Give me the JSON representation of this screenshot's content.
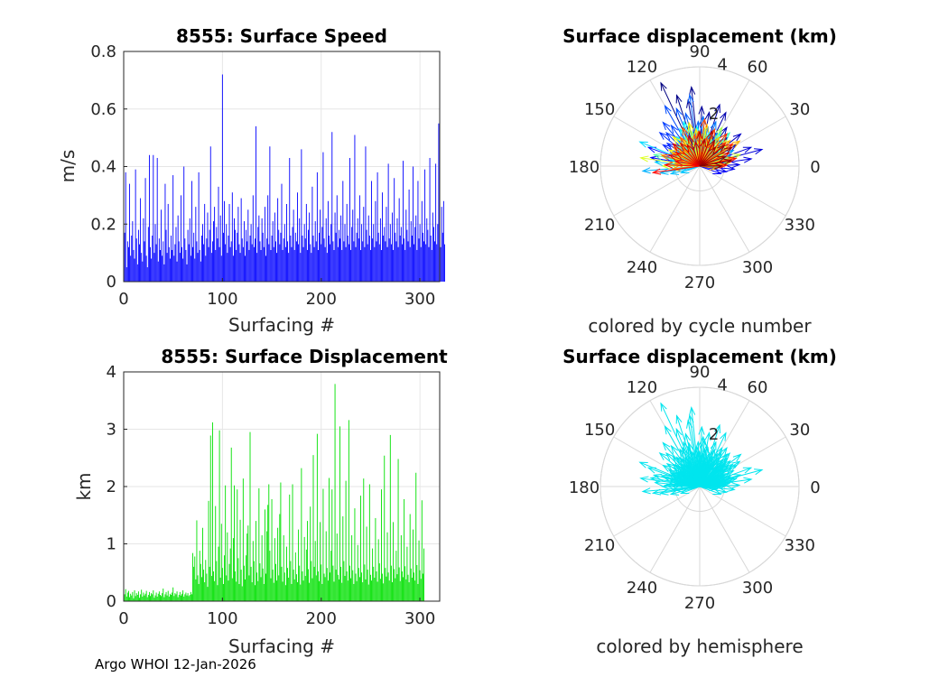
{
  "footer": "Argo WHOI 12-Jan-2026",
  "chart_data": [
    {
      "type": "bar",
      "title": "8555: Surface Speed",
      "xlabel": "Surfacing #",
      "ylabel": "m/s",
      "xlim": [
        0,
        320
      ],
      "ylim": [
        0,
        0.8
      ],
      "xticks": [
        0,
        100,
        200,
        300
      ],
      "yticks": [
        0,
        0.2,
        0.4,
        0.6,
        0.8
      ],
      "xtick_labels": [
        "0",
        "100",
        "200",
        "300"
      ],
      "ytick_labels": [
        "0",
        "0.2",
        "0.4",
        "0.6",
        "0.8"
      ],
      "grid": true,
      "color": "#0000ff",
      "values": [
        0.17,
        0.38,
        0.05,
        0.14,
        0.12,
        0.34,
        0.09,
        0.16,
        0.21,
        0.11,
        0.08,
        0.39,
        0.15,
        0.06,
        0.18,
        0.13,
        0.29,
        0.1,
        0.07,
        0.22,
        0.14,
        0.36,
        0.09,
        0.05,
        0.19,
        0.44,
        0.12,
        0.08,
        0.16,
        0.44,
        0.1,
        0.2,
        0.13,
        0.43,
        0.07,
        0.15,
        0.11,
        0.25,
        0.09,
        0.14,
        0.06,
        0.34,
        0.18,
        0.1,
        0.27,
        0.12,
        0.08,
        0.16,
        0.11,
        0.37,
        0.09,
        0.13,
        0.19,
        0.07,
        0.23,
        0.14,
        0.1,
        0.3,
        0.12,
        0.08,
        0.4,
        0.15,
        0.11,
        0.06,
        0.18,
        0.13,
        0.22,
        0.09,
        0.35,
        0.12,
        0.17,
        0.08,
        0.26,
        0.14,
        0.1,
        0.38,
        0.11,
        0.07,
        0.16,
        0.2,
        0.13,
        0.27,
        0.09,
        0.15,
        0.24,
        0.12,
        0.18,
        0.47,
        0.1,
        0.14,
        0.21,
        0.26,
        0.11,
        0.19,
        0.15,
        0.33,
        0.12,
        0.23,
        0.09,
        0.72,
        0.17,
        0.28,
        0.13,
        0.2,
        0.1,
        0.16,
        0.27,
        0.12,
        0.14,
        0.31,
        0.09,
        0.22,
        0.18,
        0.11,
        0.17,
        0.26,
        0.13,
        0.1,
        0.29,
        0.15,
        0.12,
        0.21,
        0.09,
        0.18,
        0.14,
        0.25,
        0.11,
        0.16,
        0.2,
        0.13,
        0.3,
        0.12,
        0.15,
        0.54,
        0.1,
        0.19,
        0.23,
        0.14,
        0.11,
        0.22,
        0.17,
        0.12,
        0.26,
        0.09,
        0.15,
        0.3,
        0.13,
        0.47,
        0.11,
        0.16,
        0.21,
        0.12,
        0.24,
        0.14,
        0.1,
        0.29,
        0.18,
        0.13,
        0.17,
        0.34,
        0.11,
        0.15,
        0.2,
        0.12,
        0.27,
        0.14,
        0.1,
        0.43,
        0.16,
        0.12,
        0.19,
        0.25,
        0.11,
        0.17,
        0.14,
        0.31,
        0.13,
        0.22,
        0.1,
        0.46,
        0.16,
        0.12,
        0.2,
        0.15,
        0.27,
        0.11,
        0.18,
        0.24,
        0.13,
        0.1,
        0.33,
        0.16,
        0.12,
        0.21,
        0.14,
        0.38,
        0.11,
        0.17,
        0.25,
        0.13,
        0.19,
        0.45,
        0.15,
        0.12,
        0.22,
        0.1,
        0.28,
        0.16,
        0.13,
        0.2,
        0.52,
        0.14,
        0.11,
        0.24,
        0.17,
        0.3,
        0.12,
        0.18,
        0.15,
        0.23,
        0.11,
        0.35,
        0.14,
        0.2,
        0.12,
        0.27,
        0.16,
        0.13,
        0.43,
        0.11,
        0.19,
        0.25,
        0.14,
        0.51,
        0.12,
        0.17,
        0.22,
        0.15,
        0.3,
        0.11,
        0.2,
        0.14,
        0.26,
        0.12,
        0.47,
        0.18,
        0.13,
        0.23,
        0.16,
        0.11,
        0.35,
        0.15,
        0.2,
        0.12,
        0.28,
        0.14,
        0.38,
        0.17,
        0.13,
        0.22,
        0.11,
        0.31,
        0.16,
        0.19,
        0.14,
        0.26,
        0.12,
        0.41,
        0.15,
        0.2,
        0.13,
        0.24,
        0.11,
        0.36,
        0.17,
        0.14,
        0.22,
        0.12,
        0.29,
        0.16,
        0.19,
        0.13,
        0.42,
        0.15,
        0.11,
        0.25,
        0.18,
        0.14,
        0.32,
        0.12,
        0.21,
        0.16,
        0.4,
        0.13,
        0.19,
        0.23,
        0.11,
        0.35,
        0.15,
        0.2,
        0.12,
        0.28,
        0.17,
        0.14,
        0.39,
        0.13,
        0.22,
        0.18,
        0.12,
        0.43,
        0.16,
        0.11,
        0.24,
        0.19,
        0.14,
        0.41,
        0.13,
        0.2,
        0.55,
        0.15,
        0.12,
        0.26,
        0.17,
        0.28,
        0.13
      ]
    },
    {
      "type": "polar",
      "title": "Surface displacement (km)",
      "xlabel": "colored by cycle number",
      "rticks": [
        2,
        4
      ],
      "rtick_labels": [
        "2",
        "4"
      ],
      "rmax": 4,
      "angle_ticks": [
        0,
        30,
        60,
        90,
        120,
        150,
        180,
        210,
        240,
        270,
        300,
        330
      ],
      "angle_labels": [
        "0",
        "30",
        "60",
        "90",
        "120",
        "150",
        "180",
        "210",
        "240",
        "270",
        "300",
        "330"
      ],
      "colormap": "jet",
      "vectors": [
        [
          115,
          3.7
        ],
        [
          108,
          3.0
        ],
        [
          96,
          3.2
        ],
        [
          100,
          2.7
        ],
        [
          88,
          2.4
        ],
        [
          80,
          2.2
        ],
        [
          72,
          2.6
        ],
        [
          64,
          2.4
        ],
        [
          55,
          1.9
        ],
        [
          46,
          1.6
        ],
        [
          38,
          2.1
        ],
        [
          30,
          1.7
        ],
        [
          20,
          2.2
        ],
        [
          15,
          2.6
        ],
        [
          8,
          2.1
        ],
        [
          2,
          1.6
        ],
        [
          -5,
          1.4
        ],
        [
          -12,
          1.1
        ],
        [
          -20,
          0.9
        ],
        [
          170,
          2.0
        ],
        [
          165,
          1.5
        ],
        [
          160,
          2.2
        ],
        [
          155,
          1.3
        ],
        [
          150,
          1.7
        ],
        [
          145,
          1.6
        ],
        [
          140,
          2.1
        ],
        [
          135,
          1.9
        ],
        [
          130,
          2.3
        ],
        [
          125,
          2.0
        ],
        [
          120,
          2.8
        ],
        [
          112,
          2.5
        ],
        [
          105,
          2.2
        ],
        [
          98,
          2.9
        ],
        [
          92,
          1.8
        ],
        [
          86,
          2.0
        ],
        [
          78,
          1.6
        ],
        [
          70,
          1.9
        ],
        [
          62,
          1.5
        ],
        [
          50,
          1.4
        ],
        [
          42,
          1.3
        ],
        [
          34,
          1.2
        ],
        [
          25,
          1.5
        ],
        [
          18,
          1.3
        ],
        [
          10,
          1.1
        ],
        [
          185,
          2.3
        ],
        [
          190,
          1.6
        ],
        [
          195,
          1.2
        ],
        [
          200,
          0.8
        ],
        [
          175,
          1.8
        ],
        [
          168,
          1.2
        ],
        [
          158,
          2.6
        ],
        [
          148,
          1.1
        ],
        [
          138,
          1.3
        ],
        [
          128,
          1.5
        ],
        [
          118,
          1.7
        ],
        [
          110,
          1.9
        ],
        [
          102,
          1.4
        ],
        [
          94,
          1.6
        ],
        [
          84,
          1.3
        ],
        [
          74,
          1.4
        ],
        [
          66,
          1.2
        ],
        [
          58,
          1.6
        ],
        [
          48,
          1.8
        ],
        [
          40,
          1.1
        ],
        [
          28,
          1.0
        ],
        [
          12,
          0.9
        ],
        [
          -2,
          0.8
        ],
        [
          176,
          1.3
        ],
        [
          166,
          1.9
        ],
        [
          156,
          1.0
        ],
        [
          146,
          0.9
        ],
        [
          136,
          1.2
        ],
        [
          126,
          1.1
        ],
        [
          116,
          1.3
        ],
        [
          106,
          1.6
        ],
        [
          90,
          1.1
        ],
        [
          82,
          1.5
        ],
        [
          76,
          1.0
        ],
        [
          68,
          1.3
        ],
        [
          60,
          1.8
        ],
        [
          52,
          1.2
        ],
        [
          44,
          1.5
        ],
        [
          36,
          1.4
        ],
        [
          26,
          1.1
        ],
        [
          16,
          1.7
        ],
        [
          6,
          1.2
        ],
        [
          180,
          1.5
        ],
        [
          172,
          2.4
        ],
        [
          162,
          1.1
        ],
        [
          152,
          1.4
        ],
        [
          142,
          1.0
        ],
        [
          132,
          1.6
        ],
        [
          122,
          1.3
        ],
        [
          114,
          1.1
        ],
        [
          104,
          1.8
        ],
        [
          96,
          1.5
        ],
        [
          88,
          1.2
        ],
        [
          80,
          1.7
        ],
        [
          72,
          1.1
        ],
        [
          64,
          1.0
        ],
        [
          56,
          1.4
        ],
        [
          48,
          1.1
        ],
        [
          40,
          1.6
        ],
        [
          32,
          1.9
        ],
        [
          22,
          1.0
        ],
        [
          14,
          1.4
        ],
        [
          4,
          1.0
        ],
        [
          -8,
          0.7
        ],
        [
          186,
          1.1
        ],
        [
          174,
          1.0
        ],
        [
          164,
          1.6
        ],
        [
          154,
          1.2
        ],
        [
          144,
          1.3
        ],
        [
          134,
          1.0
        ],
        [
          124,
          1.4
        ],
        [
          114,
          1.7
        ],
        [
          100,
          1.3
        ],
        [
          92,
          1.4
        ],
        [
          84,
          1.9
        ],
        [
          76,
          1.2
        ],
        [
          68,
          1.6
        ],
        [
          58,
          1.1
        ],
        [
          50,
          1.7
        ],
        [
          42,
          1.4
        ],
        [
          34,
          1.6
        ],
        [
          24,
          1.3
        ],
        [
          12,
          1.5
        ],
        [
          2,
          1.1
        ],
        [
          188,
          1.9
        ],
        [
          178,
          1.4
        ],
        [
          168,
          1.0
        ],
        [
          160,
          1.3
        ],
        [
          150,
          1.1
        ],
        [
          140,
          1.4
        ],
        [
          130,
          1.2
        ],
        [
          120,
          1.0
        ],
        [
          110,
          1.3
        ],
        [
          100,
          1.0
        ],
        [
          90,
          1.4
        ],
        [
          80,
          1.1
        ],
        [
          70,
          1.5
        ],
        [
          60,
          1.2
        ],
        [
          50,
          1.0
        ],
        [
          40,
          1.3
        ],
        [
          30,
          1.5
        ],
        [
          20,
          1.1
        ],
        [
          10,
          1.3
        ],
        [
          0,
          0.9
        ]
      ]
    },
    {
      "type": "bar",
      "title": "8555: Surface Displacement",
      "xlabel": "Surfacing #",
      "ylabel": "km",
      "xlim": [
        0,
        320
      ],
      "ylim": [
        0,
        4
      ],
      "xticks": [
        0,
        100,
        200,
        300
      ],
      "yticks": [
        0,
        1,
        2,
        3,
        4
      ],
      "xtick_labels": [
        "0",
        "100",
        "200",
        "300"
      ],
      "ytick_labels": [
        "0",
        "1",
        "2",
        "3",
        "4"
      ],
      "grid": true,
      "color": "#00e000",
      "values": [
        0.12,
        0.21,
        0.08,
        0.15,
        0.18,
        0.07,
        0.13,
        0.1,
        0.16,
        0.05,
        0.19,
        0.09,
        0.14,
        0.11,
        0.17,
        0.06,
        0.12,
        0.2,
        0.08,
        0.15,
        0.1,
        0.13,
        0.18,
        0.07,
        0.11,
        0.16,
        0.09,
        0.14,
        0.12,
        0.19,
        0.06,
        0.1,
        0.15,
        0.08,
        0.13,
        0.17,
        0.11,
        0.09,
        0.14,
        0.22,
        0.07,
        0.12,
        0.16,
        0.1,
        0.18,
        0.08,
        0.13,
        0.11,
        0.15,
        0.24,
        0.09,
        0.14,
        0.12,
        0.17,
        0.07,
        0.11,
        0.16,
        0.1,
        0.13,
        0.19,
        0.08,
        0.12,
        0.15,
        0.1,
        0.14,
        0.09,
        0.11,
        0.16,
        0.12,
        0.84,
        0.6,
        0.78,
        0.38,
        1.41,
        0.45,
        0.3,
        0.88,
        0.65,
        0.42,
        1.28,
        0.55,
        0.33,
        0.72,
        0.48,
        0.25,
        1.75,
        0.6,
        2.89,
        0.44,
        3.12,
        0.52,
        0.35,
        1.66,
        0.7,
        0.28,
        0.95,
        2.98,
        0.41,
        1.35,
        0.58,
        0.3,
        0.8,
        2.02,
        0.45,
        1.2,
        0.36,
        0.65,
        0.92,
        2.68,
        0.4,
        1.1,
        2.02,
        0.52,
        0.34,
        1.95,
        0.75,
        0.3,
        1.42,
        0.55,
        0.26,
        2.14,
        0.62,
        0.38,
        0.8,
        1.18,
        1.32,
        0.45,
        2.95,
        0.6,
        0.33,
        1.05,
        0.7,
        0.28,
        1.4,
        0.5,
        0.35,
        1.97,
        0.66,
        0.42,
        1.15,
        0.57,
        0.3,
        1.6,
        0.48,
        1.22,
        1.68,
        2.04,
        0.88,
        0.4,
        1.78,
        0.55,
        0.32,
        1.1,
        0.65,
        0.36,
        1.28,
        0.45,
        1.52,
        2.07,
        0.6,
        0.34,
        1.15,
        0.5,
        0.28,
        0.95,
        0.58,
        0.41,
        1.86,
        0.7,
        0.3,
        2.04,
        0.55,
        0.38,
        0.85,
        0.47,
        0.33,
        1.25,
        0.62,
        0.29,
        2.32,
        0.52,
        0.36,
        1.12,
        0.44,
        0.9,
        1.4,
        0.56,
        0.32,
        1.65,
        0.7,
        0.4,
        2.55,
        0.6,
        1.05,
        0.45,
        2.92,
        0.52,
        0.35,
        1.38,
        0.64,
        0.3,
        1.96,
        0.48,
        0.42,
        1.22,
        0.58,
        0.36,
        2.15,
        0.5,
        0.88,
        1.95,
        0.62,
        0.34,
        3.79,
        0.55,
        1.18,
        0.46,
        0.38,
        3.05,
        0.6,
        0.32,
        1.48,
        0.7,
        0.44,
        2.1,
        0.52,
        0.36,
        3.16,
        0.62,
        0.4,
        1.15,
        0.54,
        0.3,
        1.62,
        0.48,
        0.35,
        0.98,
        0.58,
        0.42,
        1.84,
        0.5,
        0.33,
        2.14,
        0.64,
        0.38,
        1.3,
        0.55,
        0.29,
        2.04,
        0.46,
        0.36,
        0.92,
        0.6,
        0.41,
        1.45,
        0.52,
        0.34,
        1.08,
        0.66,
        0.39,
        1.95,
        0.48,
        0.31,
        2.54,
        0.58,
        0.43,
        1.2,
        0.5,
        0.36,
        2.9,
        0.62,
        0.33,
        1.38,
        0.56,
        0.4,
        0.88,
        0.47,
        2.48,
        0.59,
        0.35,
        1.15,
        0.52,
        0.42,
        1.78,
        0.61,
        0.38,
        0.95,
        0.46,
        0.33,
        1.52,
        0.57,
        0.41,
        1.25,
        0.5,
        0.36,
        2.24,
        0.63,
        0.3,
        1.06,
        0.54,
        0.39,
        1.76,
        0.48,
        0.92
      ]
    },
    {
      "type": "polar",
      "title": "Surface displacement (km)",
      "xlabel": "colored by hemisphere",
      "rticks": [
        2,
        4
      ],
      "rtick_labels": [
        "2",
        "4"
      ],
      "rmax": 4,
      "angle_ticks": [
        0,
        30,
        60,
        90,
        120,
        150,
        180,
        210,
        240,
        270,
        300,
        330
      ],
      "angle_labels": [
        "0",
        "30",
        "60",
        "90",
        "120",
        "150",
        "180",
        "210",
        "240",
        "270",
        "300",
        "330"
      ],
      "color": "#00e5ee",
      "vectors": "same as previous polar"
    }
  ]
}
